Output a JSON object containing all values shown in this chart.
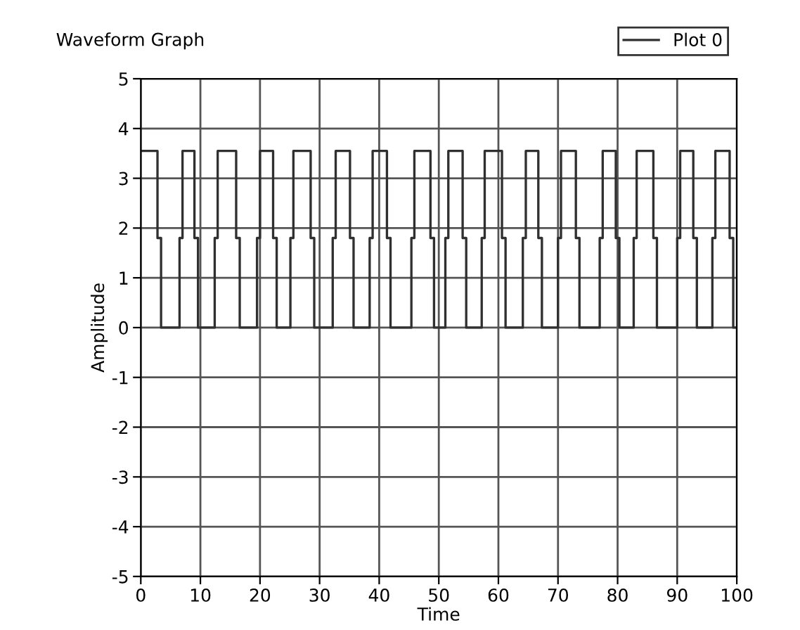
{
  "chart_data": {
    "type": "line",
    "title": "Waveform Graph",
    "xlabel": "Time",
    "ylabel": "Amplitude",
    "series": [
      {
        "name": "Plot 0",
        "color": "#303030",
        "x": [
          0,
          2.8,
          2.8,
          3.4,
          3.4,
          6.5,
          6.5,
          7,
          7,
          9,
          9,
          9.6,
          9.6,
          12.4,
          12.4,
          12.9,
          12.9,
          16,
          16,
          16.6,
          16.6,
          19.5,
          19.5,
          20,
          20,
          22.2,
          22.2,
          22.8,
          22.8,
          25.1,
          25.1,
          25.6,
          25.6,
          28.5,
          28.5,
          29.1,
          29.1,
          32.2,
          32.2,
          32.7,
          32.7,
          35.1,
          35.1,
          35.7,
          35.7,
          38.4,
          38.4,
          38.9,
          38.9,
          41.3,
          41.3,
          41.9,
          41.9,
          45.4,
          45.4,
          45.9,
          45.9,
          48.6,
          48.6,
          49.2,
          49.2,
          51.1,
          51.1,
          51.6,
          51.6,
          54,
          54,
          54.6,
          54.6,
          57.2,
          57.2,
          57.7,
          57.7,
          60.6,
          60.6,
          61.2,
          61.2,
          64.1,
          64.1,
          64.6,
          64.6,
          66.7,
          66.7,
          67.3,
          67.3,
          70,
          70,
          70.5,
          70.5,
          73,
          73,
          73.6,
          73.6,
          77,
          77,
          77.5,
          77.5,
          79.7,
          79.7,
          80.3,
          80.3,
          82.7,
          82.7,
          83.2,
          83.2,
          86,
          86,
          86.6,
          86.6,
          90,
          90,
          90.5,
          90.5,
          92.7,
          92.7,
          93.3,
          93.3,
          95.9,
          95.9,
          96.4,
          96.4,
          98.8,
          98.8,
          99.4,
          99.4,
          100
        ],
        "values": [
          3.55,
          3.55,
          1.8,
          1.8,
          0,
          0,
          1.8,
          1.8,
          3.55,
          3.55,
          1.8,
          1.8,
          0,
          0,
          1.8,
          1.8,
          3.55,
          3.55,
          1.8,
          1.8,
          0,
          0,
          1.8,
          1.8,
          3.55,
          3.55,
          1.8,
          1.8,
          0,
          0,
          1.8,
          1.8,
          3.55,
          3.55,
          1.8,
          1.8,
          0,
          0,
          1.8,
          1.8,
          3.55,
          3.55,
          1.8,
          1.8,
          0,
          0,
          1.8,
          1.8,
          3.55,
          3.55,
          1.8,
          1.8,
          0,
          0,
          1.8,
          1.8,
          3.55,
          3.55,
          1.8,
          1.8,
          0,
          0,
          1.8,
          1.8,
          3.55,
          3.55,
          1.8,
          1.8,
          0,
          0,
          1.8,
          1.8,
          3.55,
          3.55,
          1.8,
          1.8,
          0,
          0,
          1.8,
          1.8,
          3.55,
          3.55,
          1.8,
          1.8,
          0,
          0,
          1.8,
          1.8,
          3.55,
          3.55,
          1.8,
          1.8,
          0,
          0,
          1.8,
          1.8,
          3.55,
          3.55,
          1.8,
          1.8,
          0,
          0,
          1.8,
          1.8,
          3.55,
          3.55,
          1.8,
          1.8,
          0,
          0,
          1.8,
          1.8,
          3.55,
          3.55,
          1.8,
          1.8,
          0,
          0,
          1.8,
          1.8,
          3.55,
          3.55,
          1.8,
          1.8,
          0,
          0
        ]
      }
    ],
    "xlim": [
      0,
      100
    ],
    "xticks": [
      0,
      10,
      20,
      30,
      40,
      50,
      60,
      70,
      80,
      90,
      100
    ],
    "ylim": [
      -5,
      5
    ],
    "yticks": [
      -5,
      -4,
      -3,
      -2,
      -1,
      0,
      1,
      2,
      3,
      4,
      5
    ],
    "grid": true,
    "legend": "top right",
    "line_style": "solid",
    "marker": "none"
  }
}
